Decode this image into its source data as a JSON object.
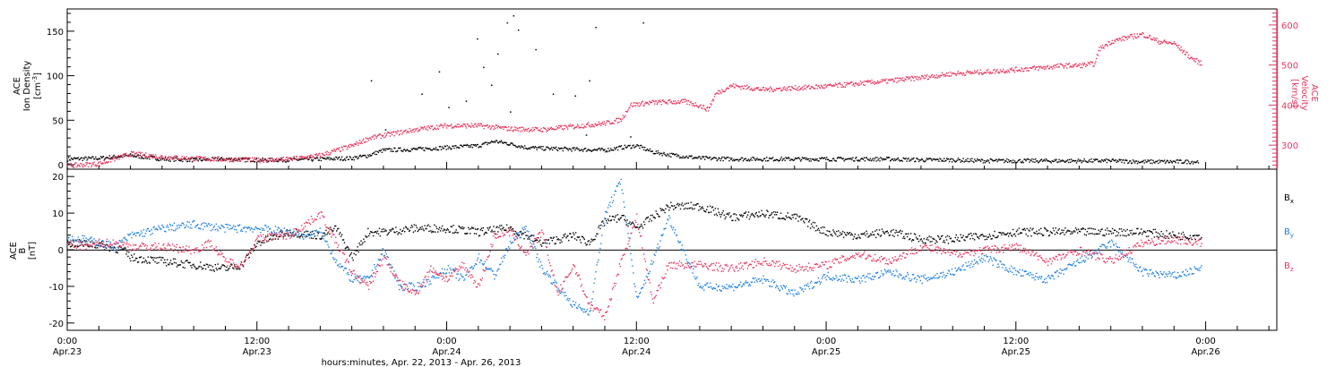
{
  "colors": {
    "black": "#000000",
    "pink": "#e8375f",
    "blue": "#1f7fe0"
  },
  "x_axis": {
    "label": "hours:minutes, Apr. 22, 2013 - Apr. 26, 2013",
    "ticks": [
      {
        "h": 0,
        "time": "0:00",
        "date": "Apr.23"
      },
      {
        "h": 12,
        "time": "12:00",
        "date": "Apr.23"
      },
      {
        "h": 24,
        "time": "0:00",
        "date": "Apr.24"
      },
      {
        "h": 36,
        "time": "12:00",
        "date": "Apr.24"
      },
      {
        "h": 48,
        "time": "0:00",
        "date": "Apr.25"
      },
      {
        "h": 60,
        "time": "12:00",
        "date": "Apr.25"
      },
      {
        "h": 72,
        "time": "0:00",
        "date": "Apr.26"
      }
    ]
  },
  "chart_data": [
    {
      "type": "scatter",
      "panel": "top",
      "xlim": [
        0,
        76.5
      ],
      "left_axis": {
        "label_lines": [
          "ACE",
          "Ion Density"
        ],
        "unit_base": "[cm",
        "unit_exp": "-3",
        "unit_end": "]",
        "ylim": [
          -5,
          175
        ],
        "ticks": [
          0,
          50,
          100,
          150
        ]
      },
      "right_axis": {
        "label_lines": [
          "ACE",
          "Velocity"
        ],
        "unit": "[km/s]",
        "ylim": [
          240,
          640
        ],
        "ticks": [
          300,
          400,
          500,
          600
        ]
      },
      "series": [
        {
          "color": "black",
          "axis": "left",
          "x": [
            0,
            2,
            4,
            6,
            8,
            10,
            12,
            14,
            16,
            18,
            19,
            20,
            22,
            24,
            26,
            27,
            28,
            29,
            30,
            32,
            34,
            35,
            36,
            37,
            38,
            39,
            40,
            42,
            44,
            46,
            48,
            50,
            52,
            54,
            56,
            58,
            60,
            62,
            64,
            66,
            68,
            70,
            71.5
          ],
          "y": [
            7,
            8,
            11,
            7,
            6,
            7,
            6,
            6,
            7,
            8,
            11,
            17,
            18,
            20,
            22,
            27,
            24,
            20,
            19,
            18,
            17,
            20,
            22,
            15,
            12,
            10,
            8,
            7,
            7,
            7,
            7,
            7,
            7,
            6,
            6,
            5,
            5,
            5,
            5,
            5,
            4,
            4,
            4
          ]
        },
        {
          "color": "pink",
          "axis": "right",
          "x": [
            0,
            2,
            3,
            4,
            6,
            8,
            10,
            12,
            14,
            16,
            18,
            19,
            20,
            22,
            24,
            26,
            28,
            30,
            32,
            34,
            35,
            35.6,
            37,
            39,
            40,
            40.5,
            41,
            42,
            44,
            46,
            48,
            50,
            52,
            54,
            56,
            58,
            60,
            62,
            63,
            64,
            65,
            65.2,
            66,
            67,
            68,
            69,
            70,
            71,
            71.7
          ],
          "y": [
            250,
            255,
            268,
            280,
            272,
            268,
            266,
            264,
            266,
            276,
            300,
            318,
            326,
            340,
            350,
            350,
            342,
            340,
            348,
            356,
            365,
            402,
            408,
            410,
            400,
            390,
            430,
            450,
            440,
            444,
            448,
            455,
            462,
            470,
            480,
            484,
            490,
            496,
            500,
            500,
            505,
            540,
            560,
            570,
            578,
            560,
            555,
            520,
            505
          ]
        }
      ],
      "outliers_density": [
        [
          19.2,
          95
        ],
        [
          20.1,
          40
        ],
        [
          22.4,
          80
        ],
        [
          23.5,
          105
        ],
        [
          24.1,
          65
        ],
        [
          25.2,
          72
        ],
        [
          25.9,
          142
        ],
        [
          26.3,
          110
        ],
        [
          26.8,
          90
        ],
        [
          27.2,
          125
        ],
        [
          27.8,
          160
        ],
        [
          28.2,
          168
        ],
        [
          28.5,
          152
        ],
        [
          28.0,
          60
        ],
        [
          29.6,
          130
        ],
        [
          30.7,
          80
        ],
        [
          32.1,
          78
        ],
        [
          33.0,
          95
        ],
        [
          33.4,
          155
        ],
        [
          36.4,
          160
        ],
        [
          32.8,
          34
        ],
        [
          35.6,
          32
        ]
      ]
    },
    {
      "type": "scatter",
      "panel": "bottom",
      "xlim": [
        0,
        76.5
      ],
      "left_axis": {
        "label_lines": [
          "ACE",
          "B"
        ],
        "unit": "[nT]",
        "ylim": [
          -22,
          22
        ],
        "ticks": [
          -20,
          -10,
          0,
          10,
          20
        ]
      },
      "legend": {
        "placement": "right",
        "entries": [
          {
            "base": "B",
            "sub": "x",
            "color": "black"
          },
          {
            "base": "B",
            "sub": "y",
            "color": "blue"
          },
          {
            "base": "B",
            "sub": "z",
            "color": "pink"
          }
        ]
      },
      "series": [
        {
          "name": "Bx",
          "color": "black",
          "x": [
            0,
            2,
            3.5,
            4,
            6,
            8,
            10,
            11,
            12,
            14,
            16,
            17,
            18,
            19,
            20,
            22,
            24,
            26,
            28,
            30,
            32,
            33,
            34,
            35,
            36,
            37,
            38,
            40,
            42,
            44,
            46,
            48,
            50,
            52,
            54,
            56,
            58,
            60,
            62,
            64,
            66,
            68,
            70,
            71.7
          ],
          "y": [
            2,
            1.5,
            0,
            -2,
            -3,
            -4,
            -5,
            -4,
            2,
            5,
            4,
            6,
            -2,
            5,
            5,
            6,
            6,
            5,
            6,
            2,
            4,
            2,
            8,
            9,
            6,
            9,
            12,
            12,
            9,
            10,
            9,
            5,
            4,
            5,
            3,
            3,
            4,
            5,
            5,
            5,
            5,
            5,
            4,
            4
          ]
        },
        {
          "name": "By",
          "color": "blue",
          "x": [
            0,
            1,
            2,
            3,
            4,
            6,
            8,
            10,
            12,
            14,
            15,
            16,
            17,
            18,
            19,
            20,
            21,
            22,
            23,
            24,
            25,
            26,
            27,
            28,
            29,
            30,
            31,
            32,
            33,
            34,
            35,
            36,
            37,
            38,
            40,
            42,
            44,
            46,
            48,
            50,
            52,
            54,
            56,
            58,
            60,
            62,
            64,
            66,
            68,
            70,
            71.7
          ],
          "y": [
            3,
            3,
            2,
            1,
            4,
            6,
            7,
            6,
            6,
            5,
            4,
            5,
            -3,
            -8,
            -8,
            0,
            -10,
            -10,
            -8,
            -5,
            -8,
            -2,
            -7,
            2,
            6,
            -5,
            -10,
            -15,
            -17,
            10,
            19,
            -14,
            -3,
            9,
            -10,
            -10,
            -8,
            -12,
            -7,
            -8,
            -6,
            -8,
            -6,
            -2,
            -6,
            -8,
            -3,
            2,
            -6,
            -7,
            -5
          ]
        },
        {
          "name": "Bz",
          "color": "pink",
          "x": [
            0,
            1,
            2,
            3,
            4,
            6,
            8,
            9,
            10,
            11,
            12,
            13,
            14,
            15,
            16,
            17,
            18,
            19,
            20,
            21,
            22,
            23,
            24,
            25,
            26,
            27,
            28,
            29,
            30,
            31,
            32,
            33,
            34,
            35,
            36,
            37,
            38,
            40,
            42,
            44,
            46,
            48,
            50,
            52,
            54,
            56,
            58,
            60,
            62,
            64,
            66,
            68,
            70,
            71.7
          ],
          "y": [
            2,
            1,
            2,
            2,
            1,
            1,
            0,
            2,
            -3,
            -4,
            3,
            4,
            4,
            7,
            10,
            2,
            -6,
            -10,
            -2,
            -9,
            -12,
            -5,
            -8,
            -4,
            -10,
            4,
            5,
            -1,
            5,
            -12,
            -4,
            -15,
            -18,
            -3,
            9,
            -14,
            -4,
            -4,
            -5,
            -3,
            -5,
            -4,
            -1,
            -3,
            1,
            -1,
            0,
            1,
            -3,
            0,
            -3,
            2,
            3,
            2
          ]
        }
      ]
    }
  ]
}
